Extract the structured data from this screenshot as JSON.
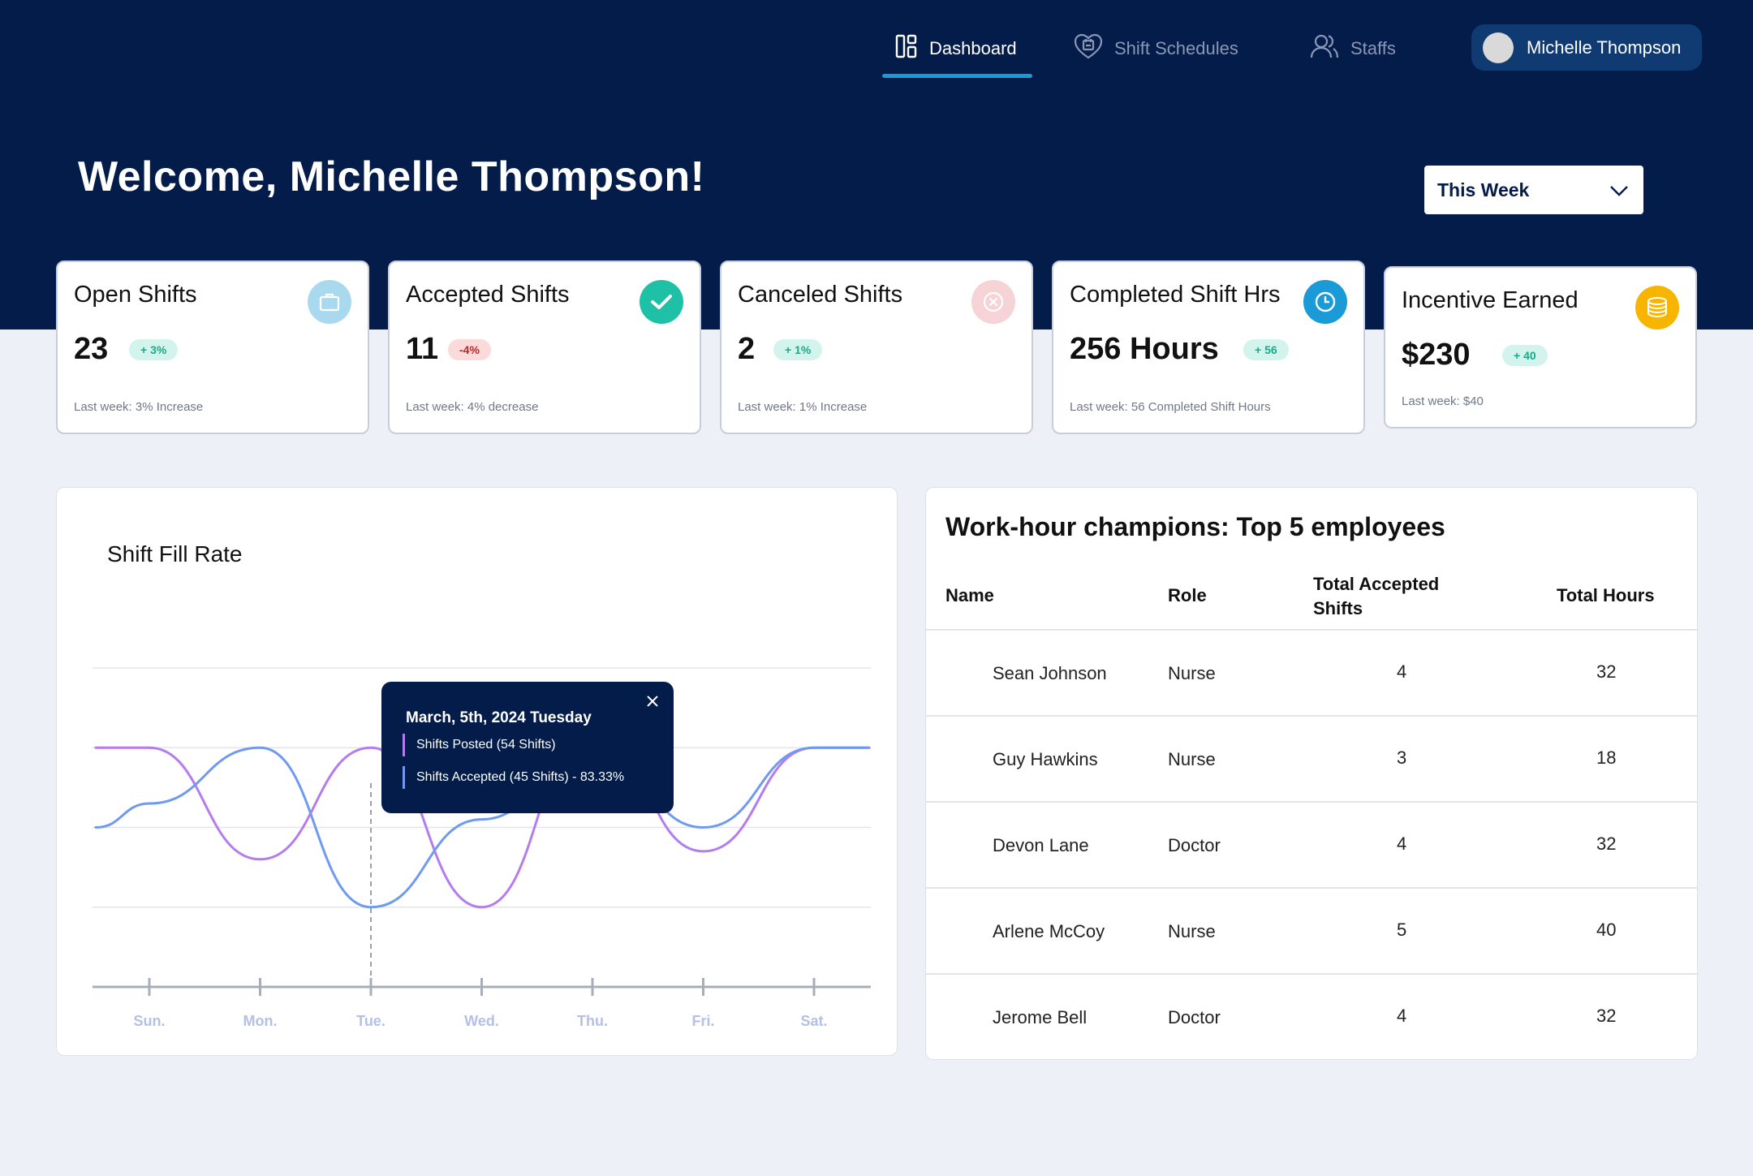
{
  "nav": {
    "items": [
      {
        "label": "Dashboard",
        "icon": "dashboard-icon",
        "active": true
      },
      {
        "label": "Shift Schedules",
        "icon": "calendar-heart-icon",
        "active": false
      },
      {
        "label": "Staffs",
        "icon": "users-icon",
        "active": false
      }
    ],
    "user_name": "Michelle Thompson"
  },
  "header": {
    "welcome": "Welcome, Michelle Thompson!",
    "period": "This Week"
  },
  "cards": [
    {
      "title": "Open Shifts",
      "value": "23",
      "badge": "+ 3%",
      "badge_type": "up",
      "note": "Last week: 3% Increase",
      "icon": "briefcase-icon",
      "icon_color": "#a9d9ef"
    },
    {
      "title": "Accepted Shifts",
      "value": "11",
      "badge": "-4%",
      "badge_type": "down",
      "note": "Last week: 4% decrease",
      "icon": "check-icon",
      "icon_color": "#1ec1a5"
    },
    {
      "title": "Canceled Shifts",
      "value": "2",
      "badge": "+ 1%",
      "badge_type": "up",
      "note": "Last week: 1% Increase",
      "icon": "cancel-icon",
      "icon_color": "#f5d3d6"
    },
    {
      "title": "Completed Shift Hrs",
      "value": "256 Hours",
      "badge": "+ 56",
      "badge_type": "up",
      "note": "Last week: 56 Completed Shift Hours",
      "icon": "clock-icon",
      "icon_color": "#1a9ad6"
    },
    {
      "title": "Incentive Earned",
      "value": "$230",
      "badge": "+ 40",
      "badge_type": "up",
      "note": "Last week: $40",
      "icon": "coins-icon",
      "icon_color": "#f7b500"
    }
  ],
  "chart_data": {
    "type": "line",
    "title": "Shift Fill Rate",
    "categories": [
      "Sun.",
      "Mon.",
      "Tue.",
      "Wed.",
      "Thu.",
      "Fri.",
      "Sat."
    ],
    "series": [
      {
        "name": "Shifts Posted",
        "color": "#b57cf0",
        "values": [
          3.0,
          1.6,
          3.0,
          1.0,
          3.2,
          1.7,
          3.0
        ]
      },
      {
        "name": "Shifts Accepted",
        "color": "#6f9af0",
        "values": [
          2.3,
          3.0,
          1.0,
          2.1,
          3.0,
          2.0,
          3.0
        ]
      }
    ],
    "ylim": [
      0,
      4
    ],
    "grid": true,
    "highlight": {
      "category": "Tue.",
      "title": "March, 5th, 2024 Tuesday",
      "posted_label": "Shifts Posted (54 Shifts)",
      "accepted_label": "Shifts Accepted (45 Shifts) - 83.33%"
    }
  },
  "table": {
    "title": "Work-hour champions: Top 5 employees",
    "columns": [
      "Name",
      "Role",
      "Total Accepted Shifts",
      "Total Hours"
    ],
    "rows": [
      {
        "name": "Sean Johnson",
        "role": "Nurse",
        "shifts": "4",
        "hours": "32"
      },
      {
        "name": "Guy Hawkins",
        "role": "Nurse",
        "shifts": "3",
        "hours": "18"
      },
      {
        "name": "Devon Lane",
        "role": "Doctor",
        "shifts": "4",
        "hours": "32"
      },
      {
        "name": "Arlene McCoy",
        "role": "Nurse",
        "shifts": "5",
        "hours": "40"
      },
      {
        "name": "Jerome Bell",
        "role": "Doctor",
        "shifts": "4",
        "hours": "32"
      }
    ]
  }
}
